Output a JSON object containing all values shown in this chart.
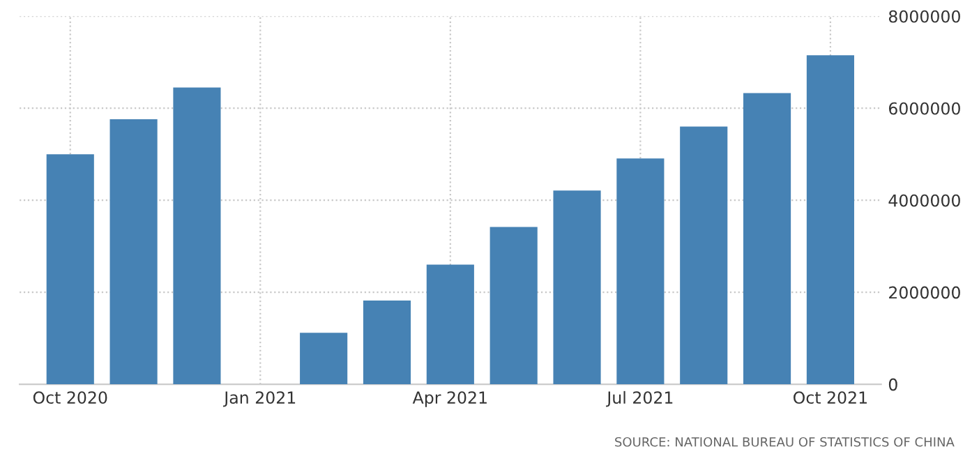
{
  "chart_data": {
    "type": "bar",
    "categories": [
      "Oct 2020",
      null,
      null,
      "Jan 2021",
      null,
      null,
      "Apr 2021",
      null,
      null,
      "Jul 2021",
      null,
      null,
      "Oct 2021"
    ],
    "values": [
      5000000,
      5760000,
      6450000,
      null,
      1120000,
      1820000,
      2600000,
      3420000,
      4210000,
      4910000,
      5600000,
      6330000,
      7150000
    ],
    "color": "#4682b4",
    "ylim": [
      0,
      8000000
    ],
    "yticks": [
      0,
      2000000,
      4000000,
      6000000,
      8000000
    ],
    "grid": true,
    "annotations": [
      "SOURCE: NATIONAL BUREAU OF STATISTICS OF CHINA"
    ]
  }
}
